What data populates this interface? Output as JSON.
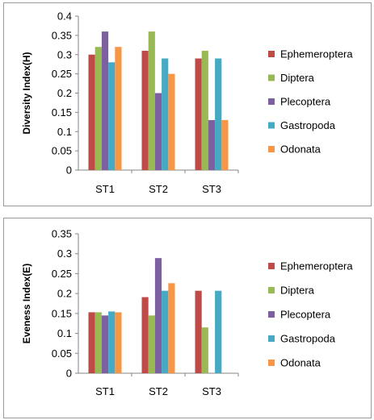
{
  "colors": {
    "Ephemeroptera": "#be4b48",
    "Diptera": "#98b954",
    "Plecoptera": "#7d60a0",
    "Gastropoda": "#46aac5",
    "Odonata": "#f79646"
  },
  "chart_data": [
    {
      "type": "bar",
      "title": "",
      "xlabel": "",
      "ylabel": "Diversity Index(H)",
      "categories": [
        "ST1",
        "ST2",
        "ST3"
      ],
      "ylim": [
        0,
        0.4
      ],
      "yticks": [
        "0",
        "0.05",
        "0.1",
        "0.15",
        "0.2",
        "0.25",
        "0.3",
        "0.35",
        "0.4"
      ],
      "legend_position": "right",
      "grid": false,
      "series": [
        {
          "name": "Ephemeroptera",
          "values": [
            0.3,
            0.31,
            0.29
          ]
        },
        {
          "name": "Diptera",
          "values": [
            0.32,
            0.36,
            0.31
          ]
        },
        {
          "name": "Plecoptera",
          "values": [
            0.36,
            0.2,
            0.13
          ]
        },
        {
          "name": "Gastropoda",
          "values": [
            0.28,
            0.29,
            0.29
          ]
        },
        {
          "name": "Odonata",
          "values": [
            0.32,
            0.25,
            0.13
          ]
        }
      ]
    },
    {
      "type": "bar",
      "title": "",
      "xlabel": "",
      "ylabel": "Eveness Index(E)",
      "categories": [
        "ST1",
        "ST2",
        "ST3"
      ],
      "ylim": [
        0,
        0.35
      ],
      "yticks": [
        "0",
        "0.05",
        "0.1",
        "0.15",
        "0.2",
        "0.25",
        "0.3",
        "0.35"
      ],
      "legend_position": "right",
      "grid": false,
      "series": [
        {
          "name": "Ephemeroptera",
          "values": [
            0.153,
            0.191,
            0.207
          ]
        },
        {
          "name": "Diptera",
          "values": [
            0.153,
            0.145,
            0.115
          ]
        },
        {
          "name": "Plecoptera",
          "values": [
            0.145,
            0.289,
            0
          ]
        },
        {
          "name": "Gastropoda",
          "values": [
            0.155,
            0.207,
            0.207
          ]
        },
        {
          "name": "Odonata",
          "values": [
            0.153,
            0.226,
            0
          ]
        }
      ]
    }
  ]
}
